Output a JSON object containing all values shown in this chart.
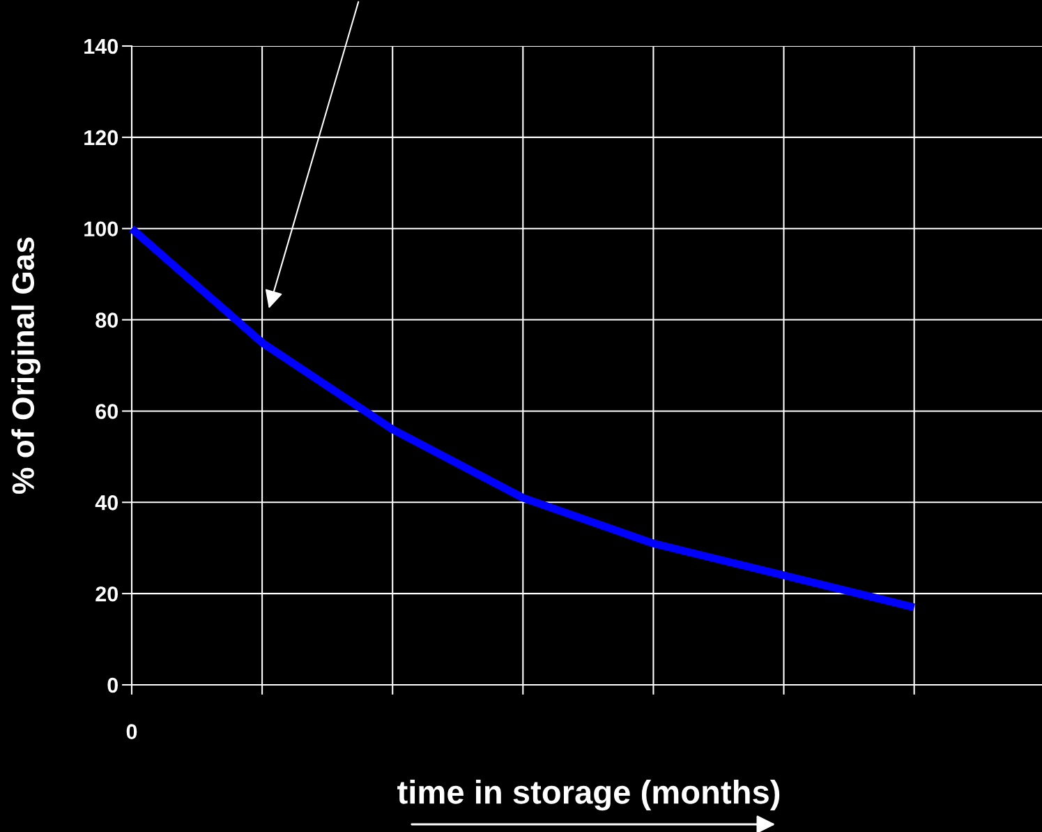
{
  "chart_data": {
    "type": "line",
    "xlabel": "time in storage (months)",
    "ylabel": "% of Original Gas",
    "categories": [
      "0",
      null,
      null,
      null,
      null,
      null,
      null
    ],
    "series": [
      {
        "color": "#0000ff",
        "values": [
          100,
          75,
          56,
          41,
          31,
          24,
          17
        ]
      }
    ],
    "ylim": [
      0,
      140
    ],
    "yticks": [
      0,
      20,
      40,
      60,
      80,
      100,
      120,
      140
    ],
    "grid": true,
    "marker": "none",
    "line_style": "solid",
    "legend": false
  }
}
